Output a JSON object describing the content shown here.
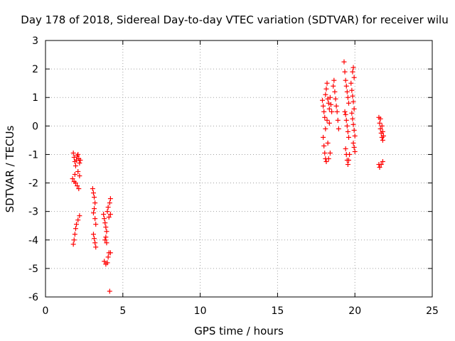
{
  "chart_data": {
    "type": "scatter",
    "title": "Day 178 of 2018, Sidereal Day-to-day VTEC variation (SDTVAR) for receiver wilu",
    "xlabel": "GPS time / hours",
    "ylabel": "SDTVAR / TECUs",
    "xlim": [
      0,
      25
    ],
    "ylim": [
      -6,
      3
    ],
    "x_ticks": [
      0,
      5,
      10,
      15,
      20,
      25
    ],
    "y_ticks": [
      -6,
      -5,
      -4,
      -3,
      -2,
      -1,
      0,
      1,
      2,
      3
    ],
    "grid": true,
    "marker": "+",
    "marker_color": "#ff0000",
    "series": [
      {
        "name": "SDTVAR",
        "points": [
          [
            1.8,
            -0.95
          ],
          [
            1.85,
            -1.1
          ],
          [
            1.9,
            -1.25
          ],
          [
            1.95,
            -1.4
          ],
          [
            2.0,
            -1.2
          ],
          [
            2.05,
            -1.05
          ],
          [
            2.1,
            -1.0
          ],
          [
            2.15,
            -1.15
          ],
          [
            2.2,
            -1.3
          ],
          [
            2.25,
            -1.2
          ],
          [
            1.75,
            -1.85
          ],
          [
            1.85,
            -1.95
          ],
          [
            1.95,
            -2.0
          ],
          [
            2.05,
            -2.1
          ],
          [
            2.15,
            -2.2
          ],
          [
            2.2,
            -1.75
          ],
          [
            2.1,
            -1.6
          ],
          [
            1.9,
            -1.7
          ],
          [
            1.8,
            -4.15
          ],
          [
            1.85,
            -4.0
          ],
          [
            1.9,
            -3.8
          ],
          [
            1.95,
            -3.6
          ],
          [
            2.0,
            -3.45
          ],
          [
            2.1,
            -3.3
          ],
          [
            2.2,
            -3.15
          ],
          [
            3.05,
            -2.2
          ],
          [
            3.1,
            -2.35
          ],
          [
            3.15,
            -2.5
          ],
          [
            3.2,
            -2.7
          ],
          [
            3.15,
            -2.9
          ],
          [
            3.1,
            -3.05
          ],
          [
            3.2,
            -3.25
          ],
          [
            3.25,
            -3.45
          ],
          [
            3.1,
            -3.8
          ],
          [
            3.15,
            -3.95
          ],
          [
            3.2,
            -4.1
          ],
          [
            3.25,
            -4.25
          ],
          [
            3.75,
            -3.1
          ],
          [
            3.8,
            -3.25
          ],
          [
            3.85,
            -3.4
          ],
          [
            3.9,
            -3.55
          ],
          [
            3.95,
            -3.7
          ],
          [
            3.9,
            -3.9
          ],
          [
            3.85,
            -4.0
          ],
          [
            3.95,
            -4.1
          ],
          [
            3.8,
            -4.75
          ],
          [
            3.9,
            -4.85
          ],
          [
            4.0,
            -4.8
          ],
          [
            4.05,
            -4.6
          ],
          [
            4.1,
            -4.45
          ],
          [
            4.2,
            -4.45
          ],
          [
            4.0,
            -3.0
          ],
          [
            4.05,
            -2.85
          ],
          [
            4.1,
            -3.2
          ],
          [
            4.15,
            -2.7
          ],
          [
            4.2,
            -2.55
          ],
          [
            4.2,
            -3.1
          ],
          [
            4.15,
            -5.8
          ],
          [
            17.9,
            0.9
          ],
          [
            17.95,
            0.7
          ],
          [
            18.0,
            0.5
          ],
          [
            18.05,
            0.3
          ],
          [
            18.1,
            1.1
          ],
          [
            18.15,
            1.3
          ],
          [
            18.2,
            1.5
          ],
          [
            18.25,
            0.95
          ],
          [
            18.3,
            0.8
          ],
          [
            18.35,
            0.6
          ],
          [
            18.4,
            1.0
          ],
          [
            18.45,
            0.75
          ],
          [
            18.5,
            0.5
          ],
          [
            18.2,
            0.2
          ],
          [
            18.1,
            -0.1
          ],
          [
            17.95,
            -0.4
          ],
          [
            18.0,
            -0.7
          ],
          [
            18.05,
            -0.95
          ],
          [
            18.1,
            -1.15
          ],
          [
            18.15,
            -1.25
          ],
          [
            18.3,
            -1.15
          ],
          [
            18.4,
            -0.95
          ],
          [
            18.25,
            -0.6
          ],
          [
            18.35,
            0.1
          ],
          [
            18.6,
            1.4
          ],
          [
            18.65,
            1.6
          ],
          [
            18.7,
            1.2
          ],
          [
            18.75,
            0.95
          ],
          [
            18.8,
            0.7
          ],
          [
            18.85,
            0.5
          ],
          [
            18.9,
            0.2
          ],
          [
            18.95,
            -0.1
          ],
          [
            19.3,
            2.25
          ],
          [
            19.35,
            1.9
          ],
          [
            19.4,
            1.6
          ],
          [
            19.45,
            1.4
          ],
          [
            19.5,
            1.2
          ],
          [
            19.55,
            1.0
          ],
          [
            19.6,
            0.8
          ],
          [
            19.35,
            0.5
          ],
          [
            19.4,
            0.4
          ],
          [
            19.45,
            0.2
          ],
          [
            19.5,
            0.0
          ],
          [
            19.55,
            -0.2
          ],
          [
            19.6,
            -0.4
          ],
          [
            19.4,
            -0.8
          ],
          [
            19.45,
            -1.0
          ],
          [
            19.5,
            -1.2
          ],
          [
            19.55,
            -1.35
          ],
          [
            19.6,
            -1.2
          ],
          [
            19.65,
            -1.0
          ],
          [
            19.75,
            1.5
          ],
          [
            19.8,
            1.25
          ],
          [
            19.85,
            1.05
          ],
          [
            19.9,
            0.85
          ],
          [
            19.95,
            0.6
          ],
          [
            19.85,
            1.9
          ],
          [
            19.9,
            2.05
          ],
          [
            19.95,
            1.7
          ],
          [
            19.8,
            0.45
          ],
          [
            19.85,
            0.25
          ],
          [
            19.9,
            0.05
          ],
          [
            19.95,
            -0.15
          ],
          [
            20.0,
            -0.35
          ],
          [
            19.9,
            -0.6
          ],
          [
            19.95,
            -0.75
          ],
          [
            20.0,
            -0.9
          ],
          [
            21.55,
            0.3
          ],
          [
            21.6,
            0.1
          ],
          [
            21.65,
            -0.1
          ],
          [
            21.7,
            -0.25
          ],
          [
            21.75,
            -0.4
          ],
          [
            21.8,
            -0.5
          ],
          [
            21.65,
            0.25
          ],
          [
            21.75,
            0.0
          ],
          [
            21.8,
            -0.2
          ],
          [
            21.85,
            -0.35
          ],
          [
            21.55,
            -1.35
          ],
          [
            21.6,
            -1.45
          ],
          [
            21.7,
            -1.35
          ],
          [
            21.8,
            -1.25
          ]
        ]
      }
    ]
  }
}
